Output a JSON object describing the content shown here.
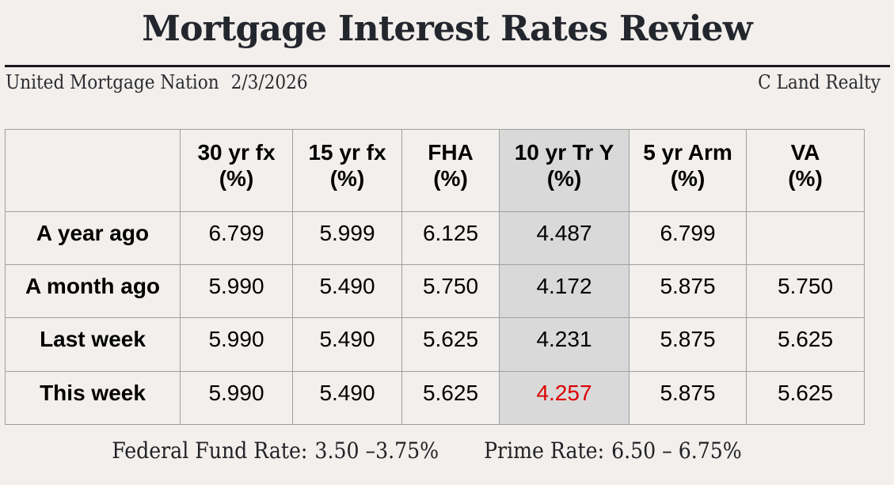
{
  "page": {
    "title": "Mortgage Interest Rates Review",
    "byline_left": "United Mortgage Nation",
    "byline_date": "2/3/2026",
    "byline_right": "C Land Realty"
  },
  "table": {
    "columns": [
      {
        "label": "30 yr fx",
        "unit": "(%)"
      },
      {
        "label": "15 yr fx",
        "unit": "(%)"
      },
      {
        "label": "FHA",
        "unit": "(%)"
      },
      {
        "label": "10 yr Tr Y",
        "unit": "(%)"
      },
      {
        "label": "5 yr Arm",
        "unit": "(%)"
      },
      {
        "label": "VA",
        "unit": "(%)"
      }
    ],
    "highlighted_column": "10 yr Tr Y",
    "rows": [
      {
        "label": "A year ago",
        "values": [
          "6.799",
          "5.999",
          "6.125",
          "4.487",
          "6.799",
          ""
        ]
      },
      {
        "label": "A month ago",
        "values": [
          "5.990",
          "5.490",
          "5.750",
          "4.172",
          "5.875",
          "5.750"
        ]
      },
      {
        "label": "Last week",
        "values": [
          "5.990",
          "5.490",
          "5.625",
          "4.231",
          "5.875",
          "5.625"
        ]
      },
      {
        "label": "This week",
        "values": [
          "5.990",
          "5.490",
          "5.625",
          "4.257",
          "5.875",
          "5.625"
        ]
      }
    ],
    "red_value": {
      "row": "This week",
      "column": "10 yr Tr Y",
      "value": "4.257"
    }
  },
  "footer": {
    "fed_label": "Federal Fund Rate:",
    "fed_value": "3.50 –3.75%",
    "prime_label": "Prime Rate:",
    "prime_value": "6.50 – 6.75%"
  },
  "colors": {
    "page_background": "#f2efec",
    "highlight_column_background": "#d9d9d9",
    "table_border": "#a0a0a0",
    "red_value": "#dd0000",
    "heading_text": "#23262d",
    "title_rule": "#17191e"
  },
  "chart_data": {
    "type": "table",
    "title": "Mortgage Interest Rates Review",
    "columns": [
      "",
      "30 yr fx (%)",
      "15 yr fx (%)",
      "FHA (%)",
      "10 yr Tr Y (%)",
      "5 yr Arm (%)",
      "VA (%)"
    ],
    "rows": [
      [
        "A year ago",
        6.799,
        5.999,
        6.125,
        4.487,
        6.799,
        null
      ],
      [
        "A month ago",
        5.99,
        5.49,
        5.75,
        4.172,
        5.875,
        5.75
      ],
      [
        "Last week",
        5.99,
        5.49,
        5.625,
        4.231,
        5.875,
        5.625
      ],
      [
        "This week",
        5.99,
        5.49,
        5.625,
        4.257,
        5.875,
        5.625
      ]
    ],
    "notes": "Federal Fund Rate: 3.50 –3.75% ; Prime Rate: 6.50 – 6.75%"
  }
}
